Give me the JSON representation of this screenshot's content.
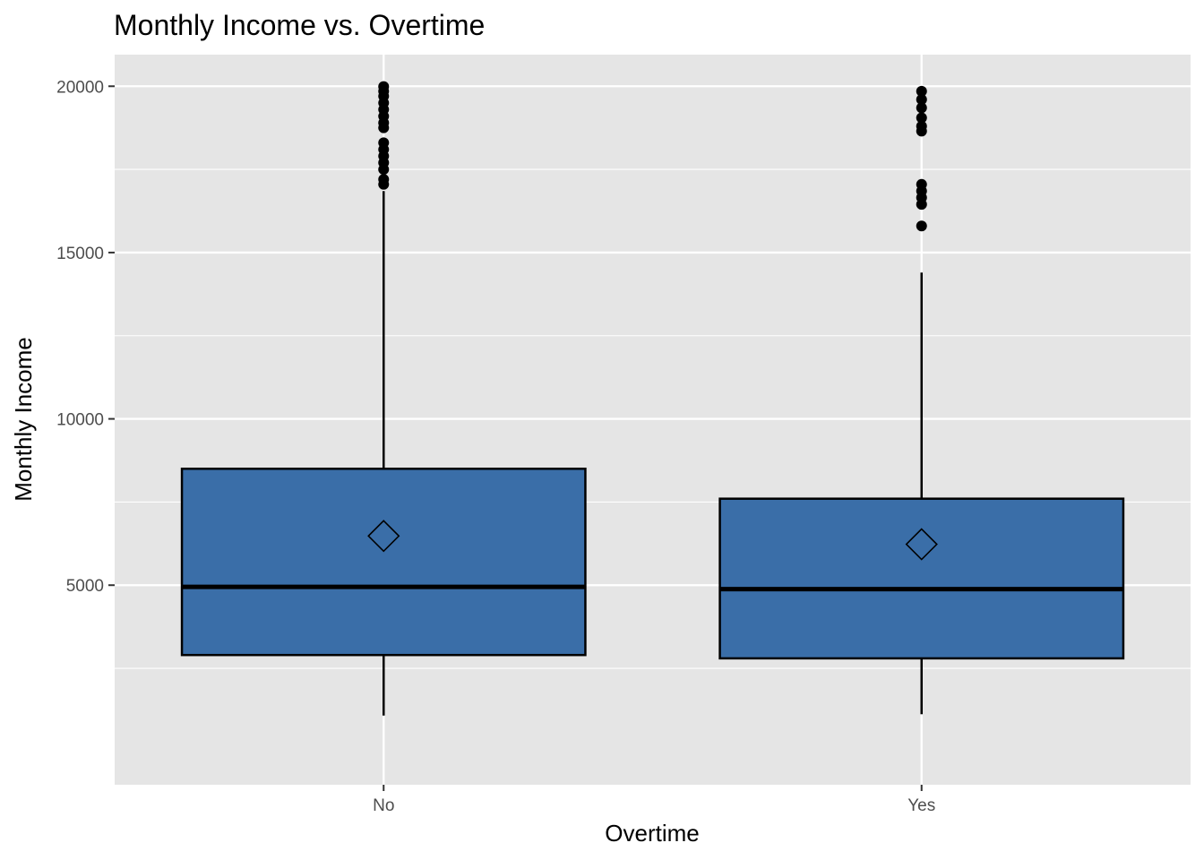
{
  "chart_data": {
    "type": "boxplot",
    "title": "Monthly Income vs. Overtime",
    "xlabel": "Overtime",
    "ylabel": "Monthly Income",
    "categories": [
      "No",
      "Yes"
    ],
    "ylim": [
      -1000,
      20950
    ],
    "yticks": [
      5000,
      10000,
      15000,
      20000
    ],
    "grid": true,
    "legend": "none",
    "colors": {
      "panel": "#E5E5E5",
      "grid": "#FFFFFF",
      "box_fill": "#3A6EA8",
      "box_stroke": "#000000",
      "tick_label": "#4D4D4D"
    },
    "boxes": [
      {
        "category": "No",
        "whisker_low": 1080,
        "q1": 2900,
        "median": 4950,
        "q3": 8500,
        "whisker_high": 16850,
        "mean": 6480,
        "outliers": [
          17050,
          17200,
          17500,
          17700,
          17900,
          18100,
          18300,
          18750,
          18900,
          19100,
          19300,
          19500,
          19700,
          19850,
          19990
        ]
      },
      {
        "category": "Yes",
        "whisker_low": 1120,
        "q1": 2800,
        "median": 4880,
        "q3": 7600,
        "whisker_high": 14400,
        "mean": 6230,
        "outliers": [
          15800,
          16450,
          16650,
          16850,
          17050,
          18650,
          18800,
          19050,
          19350,
          19600,
          19850
        ]
      }
    ]
  }
}
